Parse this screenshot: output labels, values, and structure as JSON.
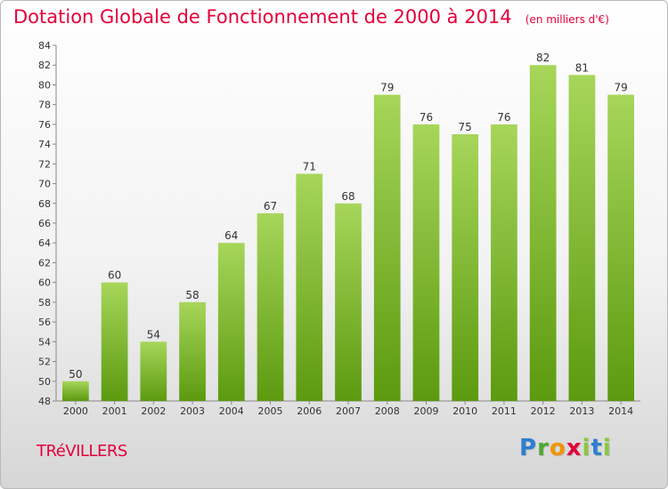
{
  "header": {
    "title": "Dotation Globale de Fonctionnement de 2000 à 2014",
    "unit_note": "(en milliers d'€)"
  },
  "footer": {
    "commune": "TRéVILLERS",
    "brand_letters": [
      "P",
      "r",
      "o",
      "x",
      "i",
      "t",
      "i"
    ]
  },
  "colors": {
    "title": "#e4003a",
    "bar_light": "#a6d65a",
    "bar_dark": "#5c9a0f"
  },
  "chart_data": {
    "type": "bar",
    "categories": [
      "2000",
      "2001",
      "2002",
      "2003",
      "2004",
      "2005",
      "2006",
      "2007",
      "2008",
      "2009",
      "2010",
      "2011",
      "2012",
      "2013",
      "2014"
    ],
    "values": [
      50,
      60,
      54,
      58,
      64,
      67,
      71,
      68,
      79,
      76,
      75,
      76,
      82,
      81,
      79
    ],
    "ylim": [
      48,
      84
    ],
    "yticks": [
      48,
      50,
      52,
      54,
      56,
      58,
      60,
      62,
      64,
      66,
      68,
      70,
      72,
      74,
      76,
      78,
      80,
      82,
      84
    ],
    "data_labels": true,
    "grid": false,
    "legend": "none"
  }
}
